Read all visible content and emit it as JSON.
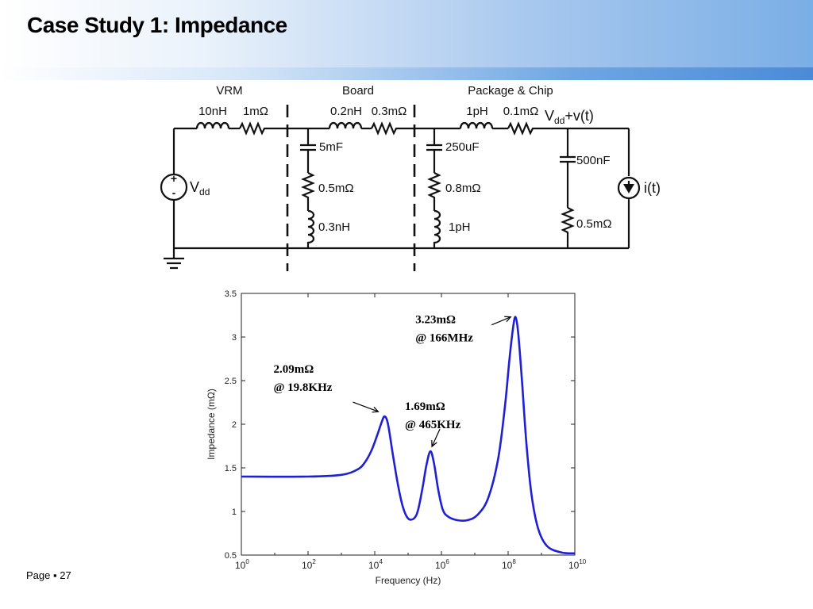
{
  "slide": {
    "title": "Case Study 1: Impedance",
    "page_label": "Page",
    "page_number": "27"
  },
  "circuit": {
    "sections": [
      "VRM",
      "Board",
      "Package & Chip"
    ],
    "series": [
      {
        "l": "10nH",
        "r": "1mΩ"
      },
      {
        "l": "0.2nH",
        "r": "0.3mΩ"
      },
      {
        "l": "1pH",
        "r": "0.1mΩ"
      }
    ],
    "node": {
      "v": "V",
      "sub": "dd",
      "rest": "+v(t)"
    },
    "source": {
      "v": "V",
      "sub": "dd"
    },
    "shunt_board": {
      "c": "5mF",
      "r": "0.5mΩ",
      "l": "0.3nH"
    },
    "shunt_pkg": {
      "c": "250uF",
      "r": "0.8mΩ",
      "l": "1pH"
    },
    "shunt_chip": {
      "c": "500nF",
      "r": "0.5mΩ"
    },
    "current_source": "i(t)",
    "plus": "+",
    "minus": "-"
  },
  "chart_data": {
    "type": "line",
    "xscale": "log",
    "xlim": [
      1,
      10000000000
    ],
    "ylim": [
      0.5,
      3.5
    ],
    "xlabel": "Frequency (Hz)",
    "ylabel": "Impedance (mΩ)",
    "x_ticks": [
      {
        "base": "10",
        "exp": "0",
        "value": 1
      },
      {
        "base": "10",
        "exp": "2",
        "value": 100
      },
      {
        "base": "10",
        "exp": "4",
        "value": 10000
      },
      {
        "base": "10",
        "exp": "6",
        "value": 1000000
      },
      {
        "base": "10",
        "exp": "8",
        "value": 100000000
      },
      {
        "base": "10",
        "exp": "10",
        "value": 10000000000
      }
    ],
    "y_ticks": [
      "0.5",
      "1",
      "1.5",
      "2",
      "2.5",
      "3",
      "3.5"
    ],
    "color": "#1f1fd6",
    "series": [
      {
        "x": [
          1,
          100,
          1000,
          3000,
          5000,
          8000,
          12000,
          16000,
          19800,
          25000,
          35000,
          50000,
          70000,
          100000,
          150000,
          200000,
          280000,
          350000,
          465000,
          600000,
          800000,
          1100000,
          1600000,
          3000000,
          6000000,
          12000000,
          25000000,
          50000000,
          80000000,
          110000000,
          140000000,
          166000000,
          200000000,
          260000000,
          350000000,
          500000000,
          800000000,
          1500000000,
          4000000000,
          10000000000
        ],
        "y": [
          1.4,
          1.4,
          1.42,
          1.48,
          1.56,
          1.7,
          1.88,
          2.02,
          2.09,
          2.0,
          1.65,
          1.3,
          1.05,
          0.92,
          0.92,
          1.02,
          1.3,
          1.52,
          1.69,
          1.55,
          1.25,
          1.02,
          0.94,
          0.9,
          0.9,
          0.96,
          1.15,
          1.6,
          2.2,
          2.75,
          3.1,
          3.23,
          3.05,
          2.5,
          1.8,
          1.2,
          0.8,
          0.6,
          0.53,
          0.52
        ]
      }
    ],
    "annotations": [
      {
        "value": "2.09mΩ",
        "at": "@ 19.8KHz",
        "x": 19800,
        "y": 2.09
      },
      {
        "value": "1.69mΩ",
        "at": "@ 465KHz",
        "x": 465000,
        "y": 1.69
      },
      {
        "value": "3.23mΩ",
        "at": "@ 166MHz",
        "x": 166000000,
        "y": 3.23
      }
    ]
  }
}
